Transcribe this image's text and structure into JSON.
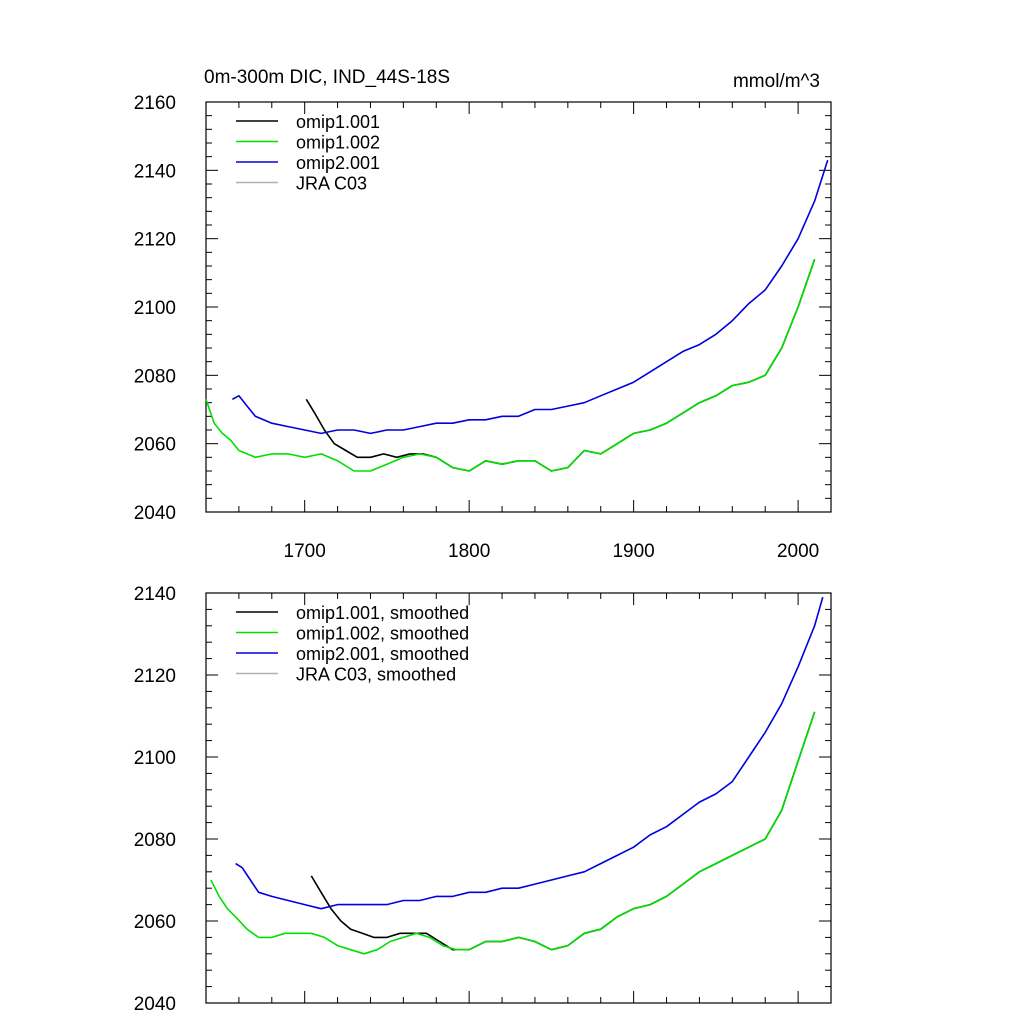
{
  "header": {
    "title": "0m-300m DIC, IND_44S-18S",
    "units": "mmol/m^3"
  },
  "chart_data": [
    {
      "type": "line",
      "title": "0m-300m DIC, IND_44S-18S",
      "units": "mmol/m^3",
      "xlim": [
        1640,
        2020
      ],
      "ylim": [
        2040,
        2160
      ],
      "xticks": [
        1700,
        1800,
        1900,
        2000
      ],
      "yticks": [
        2040,
        2060,
        2080,
        2100,
        2120,
        2140,
        2160
      ],
      "legend_position": "top-left",
      "grid": false,
      "series": [
        {
          "name": "omip1.001",
          "color": "#000000",
          "x": [
            1701,
            1706,
            1712,
            1718,
            1725,
            1732,
            1740,
            1748,
            1756,
            1764,
            1772,
            1780,
            1790,
            1800,
            1810,
            1820,
            1830,
            1840,
            1850,
            1860,
            1870,
            1880,
            1890,
            1900,
            1910,
            1920,
            1930,
            1940,
            1950,
            1960,
            1970,
            1980,
            1990,
            2000,
            2010
          ],
          "y": [
            2073,
            2069,
            2064,
            2060,
            2058,
            2056,
            2056,
            2057,
            2056,
            2057,
            2057,
            2056,
            2053,
            2052,
            2055,
            2054,
            2055,
            2055,
            2052,
            2053,
            2058,
            2057,
            2060,
            2063,
            2064,
            2066,
            2069,
            2072,
            2074,
            2077,
            2078,
            2080,
            2088,
            2100,
            2114
          ]
        },
        {
          "name": "omip1.002",
          "color": "#00e000",
          "x": [
            1640,
            1645,
            1650,
            1655,
            1660,
            1670,
            1680,
            1690,
            1700,
            1710,
            1720,
            1730,
            1740,
            1750,
            1760,
            1770,
            1780,
            1790,
            1800,
            1810,
            1820,
            1830,
            1840,
            1850,
            1860,
            1870,
            1880,
            1890,
            1900,
            1910,
            1920,
            1930,
            1940,
            1950,
            1960,
            1970,
            1980,
            1990,
            2000,
            2010
          ],
          "y": [
            2073,
            2066,
            2063,
            2061,
            2058,
            2056,
            2057,
            2057,
            2056,
            2057,
            2055,
            2052,
            2052,
            2054,
            2056,
            2057,
            2056,
            2053,
            2052,
            2055,
            2054,
            2055,
            2055,
            2052,
            2053,
            2058,
            2057,
            2060,
            2063,
            2064,
            2066,
            2069,
            2072,
            2074,
            2077,
            2078,
            2080,
            2088,
            2100,
            2114
          ]
        },
        {
          "name": "omip2.001",
          "color": "#0000e0",
          "x": [
            1656,
            1660,
            1665,
            1670,
            1680,
            1690,
            1700,
            1710,
            1720,
            1730,
            1740,
            1750,
            1760,
            1770,
            1780,
            1790,
            1800,
            1810,
            1820,
            1830,
            1840,
            1850,
            1860,
            1870,
            1880,
            1890,
            1900,
            1910,
            1920,
            1930,
            1940,
            1950,
            1960,
            1970,
            1980,
            1990,
            2000,
            2010,
            2018
          ],
          "y": [
            2073,
            2074,
            2071,
            2068,
            2066,
            2065,
            2064,
            2063,
            2064,
            2064,
            2063,
            2064,
            2064,
            2065,
            2066,
            2066,
            2067,
            2067,
            2068,
            2068,
            2070,
            2070,
            2071,
            2072,
            2074,
            2076,
            2078,
            2081,
            2084,
            2087,
            2089,
            2092,
            2096,
            2101,
            2105,
            2112,
            2120,
            2131,
            2143
          ]
        },
        {
          "name": "JRA C03",
          "color": "#b0b0b0",
          "x": [],
          "y": []
        }
      ]
    },
    {
      "type": "line",
      "xlim": [
        1640,
        2020
      ],
      "ylim": [
        2040,
        2140
      ],
      "xticks": [
        1700,
        1800,
        1900,
        2000
      ],
      "yticks": [
        2040,
        2060,
        2080,
        2100,
        2120,
        2140
      ],
      "legend_position": "top-left",
      "grid": false,
      "series": [
        {
          "name": "omip1.001, smoothed",
          "color": "#000000",
          "x": [
            1704,
            1710,
            1716,
            1722,
            1728,
            1735,
            1742,
            1750,
            1758,
            1766,
            1774,
            1782,
            1790,
            1800,
            1810,
            1820,
            1830,
            1840,
            1850,
            1860,
            1870,
            1880,
            1890,
            1900,
            1910,
            1920,
            1930,
            1940,
            1950,
            1960,
            1970,
            1980,
            1990,
            2000,
            2010
          ],
          "y": [
            2071,
            2067,
            2063,
            2060,
            2058,
            2057,
            2056,
            2056,
            2057,
            2057,
            2057,
            2055,
            2053,
            2053,
            2055,
            2055,
            2056,
            2055,
            2053,
            2054,
            2057,
            2058,
            2061,
            2063,
            2064,
            2066,
            2069,
            2072,
            2074,
            2076,
            2078,
            2080,
            2087,
            2099,
            2111
          ]
        },
        {
          "name": "omip1.002, smoothed",
          "color": "#00e000",
          "x": [
            1643,
            1648,
            1653,
            1658,
            1665,
            1672,
            1680,
            1688,
            1696,
            1704,
            1712,
            1720,
            1728,
            1736,
            1744,
            1752,
            1760,
            1768,
            1776,
            1784,
            1792,
            1800,
            1810,
            1820,
            1830,
            1840,
            1850,
            1860,
            1870,
            1880,
            1890,
            1900,
            1910,
            1920,
            1930,
            1940,
            1950,
            1960,
            1970,
            1980,
            1990,
            2000,
            2010
          ],
          "y": [
            2070,
            2066,
            2063,
            2061,
            2058,
            2056,
            2056,
            2057,
            2057,
            2057,
            2056,
            2054,
            2053,
            2052,
            2053,
            2055,
            2056,
            2057,
            2056,
            2054,
            2053,
            2053,
            2055,
            2055,
            2056,
            2055,
            2053,
            2054,
            2057,
            2058,
            2061,
            2063,
            2064,
            2066,
            2069,
            2072,
            2074,
            2076,
            2078,
            2080,
            2087,
            2099,
            2111
          ]
        },
        {
          "name": "omip2.001, smoothed",
          "color": "#0000e0",
          "x": [
            1658,
            1662,
            1667,
            1672,
            1680,
            1690,
            1700,
            1710,
            1720,
            1730,
            1740,
            1750,
            1760,
            1770,
            1780,
            1790,
            1800,
            1810,
            1820,
            1830,
            1840,
            1850,
            1860,
            1870,
            1880,
            1890,
            1900,
            1910,
            1920,
            1930,
            1940,
            1950,
            1960,
            1970,
            1980,
            1990,
            2000,
            2010,
            2015
          ],
          "y": [
            2074,
            2073,
            2070,
            2067,
            2066,
            2065,
            2064,
            2063,
            2064,
            2064,
            2064,
            2064,
            2065,
            2065,
            2066,
            2066,
            2067,
            2067,
            2068,
            2068,
            2069,
            2070,
            2071,
            2072,
            2074,
            2076,
            2078,
            2081,
            2083,
            2086,
            2089,
            2091,
            2094,
            2100,
            2106,
            2113,
            2122,
            2132,
            2139
          ]
        },
        {
          "name": "JRA C03, smoothed",
          "color": "#b0b0b0",
          "x": [],
          "y": []
        }
      ]
    }
  ]
}
